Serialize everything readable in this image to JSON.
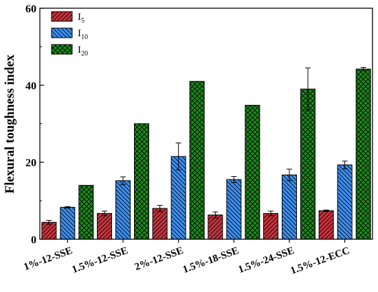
{
  "chart_data": {
    "type": "bar",
    "title": "",
    "xlabel": "",
    "ylabel": "Flexural toughness index",
    "ylim": [
      0,
      60
    ],
    "yticks": [
      0,
      20,
      40,
      60
    ],
    "grid": false,
    "legend_position": "top-left",
    "categories": [
      "1%-12-SSE",
      "1.5%-12-SSE",
      "2%-12-SSE",
      "1.5%-18-SSE",
      "1.5%-24-SSE",
      "1.5%-12-ECC"
    ],
    "series": [
      {
        "name": "I5",
        "base": "I",
        "sub": "5",
        "color": "#c8343e",
        "pattern": "diag-right",
        "values": [
          4.4,
          6.7,
          8.0,
          6.3,
          6.7,
          7.4
        ],
        "errors": [
          0.5,
          0.6,
          0.8,
          0.8,
          0.6,
          0.2
        ]
      },
      {
        "name": "I10",
        "base": "I",
        "sub": "10",
        "color": "#3e8ff0",
        "pattern": "diag-left",
        "values": [
          8.3,
          15.2,
          21.5,
          15.5,
          16.7,
          19.3
        ],
        "errors": [
          0.2,
          1.0,
          3.5,
          0.8,
          1.5,
          1.0
        ]
      },
      {
        "name": "I20",
        "base": "I",
        "sub": "20",
        "color": "#1d8a1d",
        "pattern": "crosshatch",
        "values": [
          14.0,
          30.0,
          41.0,
          34.8,
          39.0,
          44.2
        ],
        "errors": [
          0,
          0,
          0,
          0,
          5.5,
          0.4
        ]
      }
    ]
  }
}
